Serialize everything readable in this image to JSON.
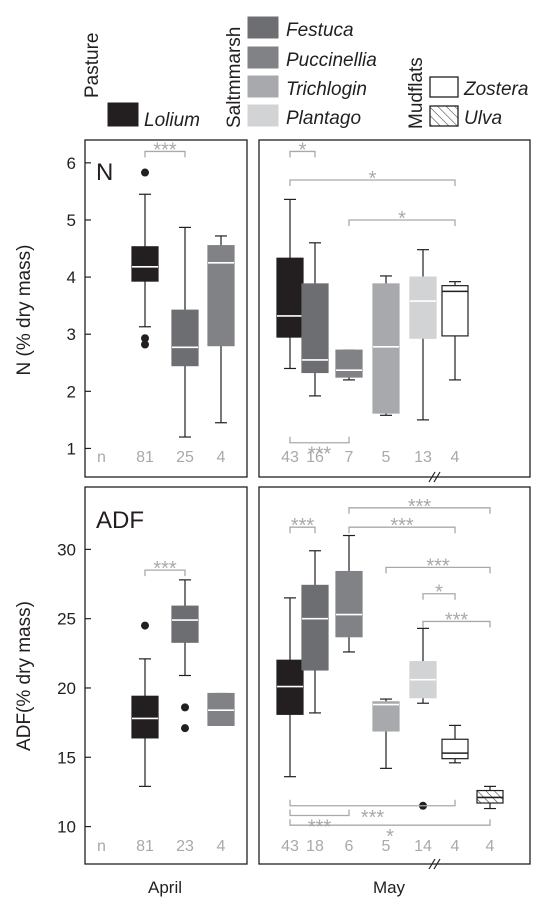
{
  "legend": {
    "groups": [
      {
        "label": "Pasture",
        "items": [
          {
            "name": "Lolium",
            "color": "#231f20",
            "hatch": false
          }
        ]
      },
      {
        "label": "Saltmmarsh",
        "items": [
          {
            "name": "Festuca",
            "color": "#6d6e71",
            "hatch": false
          },
          {
            "name": "Puccinellia",
            "color": "#808285",
            "hatch": false
          },
          {
            "name": "Trichlogin",
            "color": "#a7a9ac",
            "hatch": false
          },
          {
            "name": "Plantago",
            "color": "#d1d3d4",
            "hatch": false
          }
        ]
      },
      {
        "label": "Mudflats",
        "items": [
          {
            "name": "Zostera",
            "color": "#ffffff",
            "hatch": false
          },
          {
            "name": "Ulva",
            "color": "#ffffff",
            "hatch": true
          }
        ]
      }
    ]
  },
  "chart_data": [
    {
      "type": "box",
      "panel_label": "N",
      "ylabel": "N (% dry mass)",
      "ylim": [
        0.5,
        6.4
      ],
      "yticks": [
        1,
        2,
        3,
        4,
        5,
        6
      ],
      "n_label": "n",
      "groups": [
        {
          "period": "April",
          "boxes": [
            {
              "species": "Lolium",
              "min": 3.13,
              "q1": 3.93,
              "median": 4.18,
              "q3": 4.53,
              "max": 5.45,
              "outliers": [
                5.83,
                2.93,
                2.82
              ],
              "n": "81",
              "color": "#231f20"
            },
            {
              "species": "Festuca",
              "min": 1.2,
              "q1": 2.45,
              "median": 2.77,
              "q3": 3.42,
              "max": 4.87,
              "outliers": [],
              "n": "25",
              "color": "#6d6e71"
            },
            {
              "species": "Puccinellia",
              "min": 1.45,
              "q1": 2.8,
              "median": 4.25,
              "q3": 4.55,
              "max": 4.72,
              "outliers": [],
              "n": "4",
              "color": "#808285"
            }
          ]
        },
        {
          "period": "May",
          "boxes": [
            {
              "species": "Lolium",
              "min": 2.4,
              "q1": 2.95,
              "median": 3.32,
              "q3": 4.33,
              "max": 5.36,
              "outliers": [],
              "n": "43",
              "color": "#231f20"
            },
            {
              "species": "Festuca",
              "min": 1.92,
              "q1": 2.33,
              "median": 2.55,
              "q3": 3.88,
              "max": 4.6,
              "outliers": [],
              "n": "16",
              "color": "#6d6e71"
            },
            {
              "species": "Puccinellia",
              "min": 2.2,
              "q1": 2.25,
              "median": 2.37,
              "q3": 2.72,
              "max": 2.72,
              "outliers": [],
              "n": "7",
              "color": "#808285"
            },
            {
              "species": "Trichlogin",
              "min": 1.58,
              "q1": 1.62,
              "median": 2.78,
              "q3": 3.88,
              "max": 4.02,
              "outliers": [],
              "n": "5",
              "color": "#a7a9ac"
            },
            {
              "species": "Plantago",
              "min": 1.5,
              "q1": 2.93,
              "median": 3.58,
              "q3": 4.0,
              "max": 4.48,
              "outliers": [],
              "n": "13",
              "color": "#d1d3d4"
            },
            {
              "species": "Zostera",
              "min": 2.2,
              "q1": 2.97,
              "median": 3.75,
              "q3": 3.85,
              "max": 3.92,
              "outliers": [],
              "n": "4",
              "color": "#ffffff"
            }
          ]
        }
      ],
      "significance": [
        {
          "period": "April",
          "from": 0,
          "to": 1,
          "label": "***",
          "level": 6.2,
          "dir": "down"
        },
        {
          "period": "May",
          "from": 0,
          "to": 1,
          "label": "*",
          "level": 6.2,
          "dir": "down"
        },
        {
          "period": "May",
          "from": 0,
          "to": 5,
          "label": "*",
          "level": 5.7,
          "dir": "down"
        },
        {
          "period": "May",
          "from": 2,
          "to": 5,
          "label": "*",
          "level": 5.0,
          "dir": "down"
        },
        {
          "period": "May",
          "from": 0,
          "to": 2,
          "label": "***",
          "level": 1.1,
          "dir": "up"
        }
      ]
    },
    {
      "type": "box",
      "panel_label": "ADF",
      "ylabel": "ADF(% dry mass)",
      "ylim": [
        7.3,
        34.5
      ],
      "yticks": [
        10,
        15,
        20,
        25,
        30
      ],
      "n_label": "n",
      "groups": [
        {
          "period": "April",
          "boxes": [
            {
              "species": "Lolium",
              "min": 12.9,
              "q1": 16.4,
              "median": 17.8,
              "q3": 19.4,
              "max": 22.1,
              "outliers": [
                24.5
              ],
              "n": "81",
              "color": "#231f20"
            },
            {
              "species": "Festuca",
              "min": 20.9,
              "q1": 23.3,
              "median": 24.9,
              "q3": 25.9,
              "max": 27.8,
              "outliers": [
                18.6,
                17.1
              ],
              "n": "23",
              "color": "#6d6e71"
            },
            {
              "species": "Puccinellia",
              "min": 17.3,
              "q1": 17.3,
              "median": 18.4,
              "q3": 19.6,
              "max": 19.6,
              "outliers": [],
              "n": "4",
              "color": "#808285"
            }
          ]
        },
        {
          "period": "May",
          "boxes": [
            {
              "species": "Lolium",
              "min": 13.6,
              "q1": 18.1,
              "median": 20.1,
              "q3": 22.0,
              "max": 26.5,
              "outliers": [],
              "n": "43",
              "color": "#231f20"
            },
            {
              "species": "Festuca",
              "min": 18.2,
              "q1": 21.3,
              "median": 25.0,
              "q3": 27.4,
              "max": 29.9,
              "outliers": [],
              "n": "18",
              "color": "#6d6e71"
            },
            {
              "species": "Puccinellia",
              "min": 22.6,
              "q1": 23.7,
              "median": 25.3,
              "q3": 28.4,
              "max": 31.0,
              "outliers": [],
              "n": "6",
              "color": "#808285"
            },
            {
              "species": "Trichlogin",
              "min": 14.2,
              "q1": 16.9,
              "median": 18.8,
              "q3": 19.0,
              "max": 19.2,
              "outliers": [],
              "n": "5",
              "color": "#a7a9ac"
            },
            {
              "species": "Plantago",
              "min": 18.9,
              "q1": 19.3,
              "median": 20.6,
              "q3": 21.9,
              "max": 24.3,
              "outliers": [
                11.5
              ],
              "n": "14",
              "color": "#d1d3d4"
            },
            {
              "species": "Zostera",
              "min": 14.6,
              "q1": 14.9,
              "median": 15.3,
              "q3": 16.3,
              "max": 17.3,
              "outliers": [],
              "n": "4",
              "color": "#ffffff"
            },
            {
              "species": "Ulva",
              "min": 11.3,
              "q1": 11.7,
              "median": 12.1,
              "q3": 12.6,
              "max": 12.9,
              "outliers": [],
              "n": "4",
              "color": "#ffffff",
              "hatch": true
            }
          ]
        }
      ],
      "significance": [
        {
          "period": "April",
          "from": 0,
          "to": 1,
          "label": "***",
          "level": 28.5,
          "dir": "down"
        },
        {
          "period": "May",
          "from": 2,
          "to": 6,
          "label": "***",
          "level": 33.0,
          "dir": "down"
        },
        {
          "period": "May",
          "from": 0,
          "to": 1,
          "label": "***",
          "level": 31.6,
          "dir": "down"
        },
        {
          "period": "May",
          "from": 2,
          "to": 5,
          "label": "***",
          "level": 31.6,
          "dir": "down"
        },
        {
          "period": "May",
          "from": 3,
          "to": 6,
          "label": "***",
          "level": 28.7,
          "dir": "down"
        },
        {
          "period": "May",
          "from": 4,
          "to": 5,
          "label": "*",
          "level": 26.8,
          "dir": "down"
        },
        {
          "period": "May",
          "from": 4,
          "to": 6,
          "label": "***",
          "level": 24.8,
          "dir": "down"
        },
        {
          "period": "May",
          "from": 0,
          "to": 2,
          "label": "***",
          "level": 10.8,
          "dir": "up"
        },
        {
          "period": "May",
          "from": 0,
          "to": 5,
          "label": "***",
          "level": 11.5,
          "dir": "up"
        },
        {
          "period": "May",
          "from": 0,
          "to": 6,
          "label": "*",
          "level": 10.1,
          "dir": "up"
        }
      ]
    }
  ],
  "xlabels": {
    "april": "April",
    "may": "May"
  }
}
